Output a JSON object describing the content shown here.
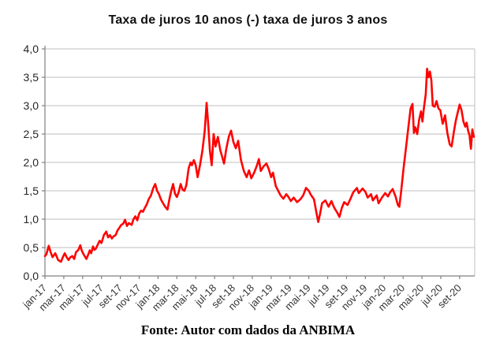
{
  "figure": {
    "background": "#ffffff",
    "accent_color": "#ff0000",
    "gridline_color": "#bfbfbf",
    "axis_color": "#808080",
    "tick_label_color": "#333333"
  },
  "footer": {
    "source_label": "Fonte: Autor com dados da ANBIMA"
  },
  "chart_data": {
    "type": "line",
    "title": "Taxa de juros 10 anos (-) taxa de juros 3 anos",
    "xlabel": "",
    "ylabel": "",
    "legend": "none",
    "grid": "horizontal",
    "ylim": [
      0,
      4
    ],
    "xlim_months": [
      0,
      45.6
    ],
    "x_unit": "months since jan-2017, bimonthly ticks",
    "x_tick_months": [
      0,
      2,
      4,
      6,
      8,
      10,
      12,
      14,
      16,
      18,
      20,
      22,
      24,
      26,
      28,
      30,
      32,
      34,
      36,
      38,
      40,
      42,
      44
    ],
    "x_tick_labels": [
      "jan-17",
      "mar-17",
      "mai-17",
      "jul-17",
      "set-17",
      "nov-17",
      "jan-18",
      "mar-18",
      "mai-18",
      "jul-18",
      "set-18",
      "nov-18",
      "jan-19",
      "mar-19",
      "mai-19",
      "jul-19",
      "set-19",
      "nov-19",
      "jan-20",
      "mar-20",
      "mai-20",
      "jul-20",
      "set-20"
    ],
    "y_ticks": [
      0,
      0.5,
      1,
      1.5,
      2,
      2.5,
      3,
      3.5,
      4
    ],
    "y_tick_labels": [
      "0,0",
      "0,5",
      "1,0",
      "1,5",
      "2,0",
      "2,5",
      "3,0",
      "3,5",
      "4,0"
    ],
    "series": [
      {
        "name": "Taxa de juros 10 anos (-) taxa de juros 3 anos",
        "color": "#ff0000",
        "points": [
          [
            0,
            0.35
          ],
          [
            0.15,
            0.38
          ],
          [
            0.4,
            0.53
          ],
          [
            0.6,
            0.42
          ],
          [
            0.8,
            0.33
          ],
          [
            1.1,
            0.4
          ],
          [
            1.4,
            0.28
          ],
          [
            1.7,
            0.25
          ],
          [
            1.9,
            0.33
          ],
          [
            2.1,
            0.4
          ],
          [
            2.3,
            0.33
          ],
          [
            2.5,
            0.28
          ],
          [
            2.7,
            0.33
          ],
          [
            2.9,
            0.35
          ],
          [
            3.1,
            0.3
          ],
          [
            3.3,
            0.42
          ],
          [
            3.55,
            0.46
          ],
          [
            3.75,
            0.54
          ],
          [
            3.9,
            0.45
          ],
          [
            4.1,
            0.38
          ],
          [
            4.4,
            0.3
          ],
          [
            4.6,
            0.38
          ],
          [
            4.75,
            0.45
          ],
          [
            4.9,
            0.4
          ],
          [
            5.1,
            0.52
          ],
          [
            5.25,
            0.46
          ],
          [
            5.4,
            0.48
          ],
          [
            5.6,
            0.55
          ],
          [
            5.8,
            0.62
          ],
          [
            6,
            0.58
          ],
          [
            6.25,
            0.72
          ],
          [
            6.5,
            0.78
          ],
          [
            6.7,
            0.68
          ],
          [
            6.9,
            0.72
          ],
          [
            7.1,
            0.66
          ],
          [
            7.3,
            0.7
          ],
          [
            7.5,
            0.72
          ],
          [
            7.7,
            0.8
          ],
          [
            7.9,
            0.85
          ],
          [
            8.1,
            0.9
          ],
          [
            8.3,
            0.92
          ],
          [
            8.5,
            0.99
          ],
          [
            8.7,
            0.88
          ],
          [
            8.9,
            0.93
          ],
          [
            9.2,
            0.9
          ],
          [
            9.4,
            1
          ],
          [
            9.6,
            1.05
          ],
          [
            9.8,
            0.98
          ],
          [
            10,
            1.1
          ],
          [
            10.2,
            1.15
          ],
          [
            10.4,
            1.13
          ],
          [
            10.6,
            1.2
          ],
          [
            10.8,
            1.26
          ],
          [
            11,
            1.35
          ],
          [
            11.25,
            1.42
          ],
          [
            11.5,
            1.55
          ],
          [
            11.7,
            1.62
          ],
          [
            11.9,
            1.5
          ],
          [
            12.1,
            1.44
          ],
          [
            12.3,
            1.35
          ],
          [
            12.5,
            1.29
          ],
          [
            12.75,
            1.22
          ],
          [
            13,
            1.17
          ],
          [
            13.2,
            1.35
          ],
          [
            13.4,
            1.5
          ],
          [
            13.6,
            1.62
          ],
          [
            13.8,
            1.45
          ],
          [
            14,
            1.39
          ],
          [
            14.2,
            1.48
          ],
          [
            14.4,
            1.62
          ],
          [
            14.6,
            1.52
          ],
          [
            14.8,
            1.5
          ],
          [
            15,
            1.6
          ],
          [
            15.25,
            1.9
          ],
          [
            15.45,
            2
          ],
          [
            15.6,
            1.95
          ],
          [
            15.8,
            2.04
          ],
          [
            16,
            1.95
          ],
          [
            16.2,
            1.74
          ],
          [
            16.45,
            1.95
          ],
          [
            16.7,
            2.2
          ],
          [
            16.95,
            2.55
          ],
          [
            17.15,
            3.05
          ],
          [
            17.35,
            2.6
          ],
          [
            17.5,
            2.2
          ],
          [
            17.7,
            1.95
          ],
          [
            17.9,
            2.5
          ],
          [
            18.1,
            2.28
          ],
          [
            18.35,
            2.45
          ],
          [
            18.6,
            2.22
          ],
          [
            18.8,
            2.1
          ],
          [
            19,
            1.98
          ],
          [
            19.25,
            2.25
          ],
          [
            19.5,
            2.45
          ],
          [
            19.75,
            2.56
          ],
          [
            20,
            2.36
          ],
          [
            20.25,
            2.25
          ],
          [
            20.5,
            2.38
          ],
          [
            20.8,
            2.04
          ],
          [
            21.1,
            1.85
          ],
          [
            21.4,
            1.74
          ],
          [
            21.65,
            1.86
          ],
          [
            21.9,
            1.72
          ],
          [
            22.2,
            1.82
          ],
          [
            22.5,
            1.95
          ],
          [
            22.7,
            2.06
          ],
          [
            22.9,
            1.85
          ],
          [
            23.2,
            1.93
          ],
          [
            23.5,
            1.98
          ],
          [
            23.75,
            1.88
          ],
          [
            24,
            1.74
          ],
          [
            24.2,
            1.82
          ],
          [
            24.5,
            1.58
          ],
          [
            24.75,
            1.5
          ],
          [
            25,
            1.42
          ],
          [
            25.3,
            1.36
          ],
          [
            25.6,
            1.44
          ],
          [
            25.8,
            1.4
          ],
          [
            26.1,
            1.32
          ],
          [
            26.4,
            1.38
          ],
          [
            26.75,
            1.3
          ],
          [
            27.1,
            1.35
          ],
          [
            27.4,
            1.42
          ],
          [
            27.7,
            1.55
          ],
          [
            28,
            1.5
          ],
          [
            28.25,
            1.42
          ],
          [
            28.55,
            1.35
          ],
          [
            28.8,
            1.12
          ],
          [
            29,
            0.95
          ],
          [
            29.2,
            1.1
          ],
          [
            29.4,
            1.28
          ],
          [
            29.75,
            1.33
          ],
          [
            30.1,
            1.22
          ],
          [
            30.4,
            1.32
          ],
          [
            30.7,
            1.2
          ],
          [
            31,
            1.12
          ],
          [
            31.25,
            1.04
          ],
          [
            31.5,
            1.2
          ],
          [
            31.75,
            1.3
          ],
          [
            32.1,
            1.25
          ],
          [
            32.4,
            1.35
          ],
          [
            32.7,
            1.47
          ],
          [
            33.1,
            1.55
          ],
          [
            33.3,
            1.46
          ],
          [
            33.7,
            1.54
          ],
          [
            34,
            1.48
          ],
          [
            34.25,
            1.38
          ],
          [
            34.6,
            1.44
          ],
          [
            34.8,
            1.33
          ],
          [
            35.2,
            1.42
          ],
          [
            35.4,
            1.28
          ],
          [
            35.75,
            1.38
          ],
          [
            36.1,
            1.46
          ],
          [
            36.4,
            1.4
          ],
          [
            36.65,
            1.48
          ],
          [
            36.9,
            1.53
          ],
          [
            37.2,
            1.4
          ],
          [
            37.45,
            1.25
          ],
          [
            37.6,
            1.22
          ],
          [
            37.8,
            1.5
          ],
          [
            38.05,
            1.9
          ],
          [
            38.3,
            2.25
          ],
          [
            38.55,
            2.6
          ],
          [
            38.8,
            2.95
          ],
          [
            39,
            3.03
          ],
          [
            39.15,
            2.52
          ],
          [
            39.3,
            2.62
          ],
          [
            39.5,
            2.5
          ],
          [
            39.7,
            2.75
          ],
          [
            39.9,
            2.9
          ],
          [
            40.05,
            2.72
          ],
          [
            40.2,
            2.95
          ],
          [
            40.4,
            3.2
          ],
          [
            40.55,
            3.65
          ],
          [
            40.7,
            3.5
          ],
          [
            40.85,
            3.6
          ],
          [
            41,
            3.45
          ],
          [
            41.15,
            3
          ],
          [
            41.35,
            2.98
          ],
          [
            41.55,
            3.08
          ],
          [
            41.75,
            2.95
          ],
          [
            41.95,
            2.92
          ],
          [
            42.2,
            2.68
          ],
          [
            42.45,
            2.83
          ],
          [
            42.7,
            2.52
          ],
          [
            42.95,
            2.32
          ],
          [
            43.15,
            2.28
          ],
          [
            43.4,
            2.55
          ],
          [
            43.6,
            2.74
          ],
          [
            43.8,
            2.88
          ],
          [
            44,
            3.02
          ],
          [
            44.2,
            2.92
          ],
          [
            44.4,
            2.72
          ],
          [
            44.6,
            2.63
          ],
          [
            44.75,
            2.7
          ],
          [
            44.9,
            2.56
          ],
          [
            45.05,
            2.48
          ],
          [
            45.2,
            2.24
          ],
          [
            45.35,
            2.58
          ],
          [
            45.5,
            2.45
          ]
        ]
      }
    ]
  }
}
